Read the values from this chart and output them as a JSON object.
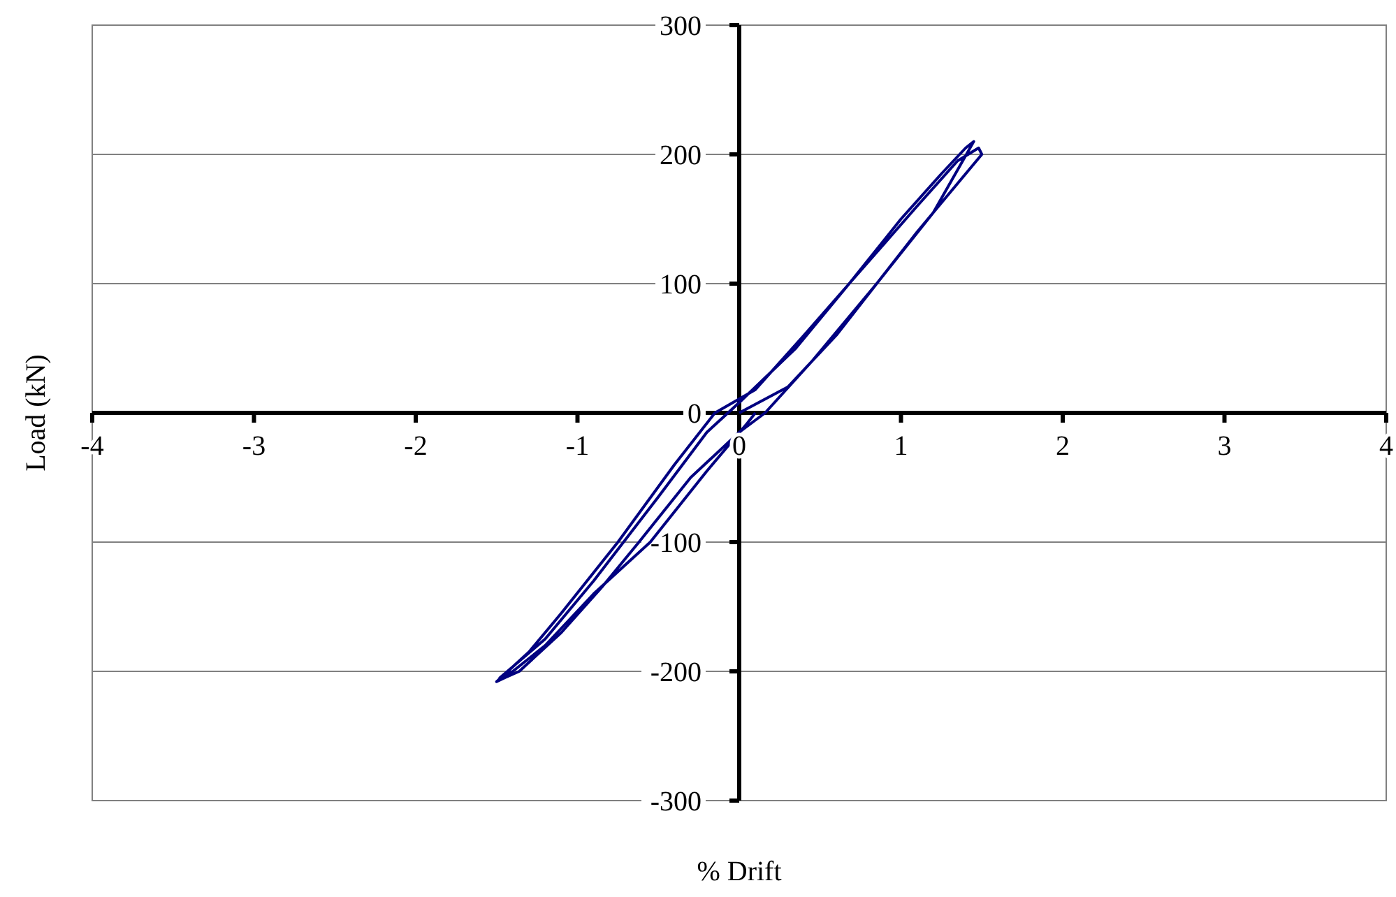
{
  "chart_data": {
    "type": "line",
    "xlabel": "% Drift",
    "ylabel": "Load (kN)",
    "xlim": [
      -4,
      4
    ],
    "ylim": [
      -300,
      300
    ],
    "xticks": [
      -4,
      -3,
      -2,
      -1,
      0,
      1,
      2,
      3,
      4
    ],
    "yticks": [
      -300,
      -200,
      -100,
      0,
      100,
      200,
      300
    ],
    "grid": "y",
    "marker": "none",
    "line_style": "solid",
    "x": [
      0,
      0.3,
      0.6,
      0.85,
      1.1,
      1.3,
      1.5,
      1.48,
      1.35,
      1.1,
      0.75,
      0.4,
      0.1,
      -0.15,
      -0.4,
      -0.75,
      -1.1,
      -1.3,
      -1.5,
      -1.45,
      -1.36,
      -1.1,
      -0.85,
      -0.62,
      -0.3,
      0,
      0.16,
      0.45,
      0.85,
      1.2,
      1.45,
      1.4,
      1.25,
      1,
      0.68,
      0.35,
      0,
      -0.2,
      -0.5,
      -0.9,
      -1.2,
      -1.48,
      -1.4,
      -1.2,
      -0.9,
      -0.55,
      -0.2,
      0.05,
      0.1
    ],
    "series": [
      {
        "color": "#000080",
        "values": [
          0,
          20,
          60,
          100,
          140,
          170,
          200,
          205,
          195,
          160,
          110,
          60,
          18,
          0,
          -40,
          -100,
          -155,
          -185,
          -208,
          -205,
          -200,
          -170,
          -135,
          -100,
          -50,
          -15,
          0,
          40,
          100,
          155,
          210,
          205,
          185,
          150,
          100,
          50,
          8,
          -15,
          -65,
          -130,
          -175,
          -205,
          -200,
          -180,
          -140,
          -100,
          -45,
          -8,
          0
        ]
      }
    ]
  }
}
